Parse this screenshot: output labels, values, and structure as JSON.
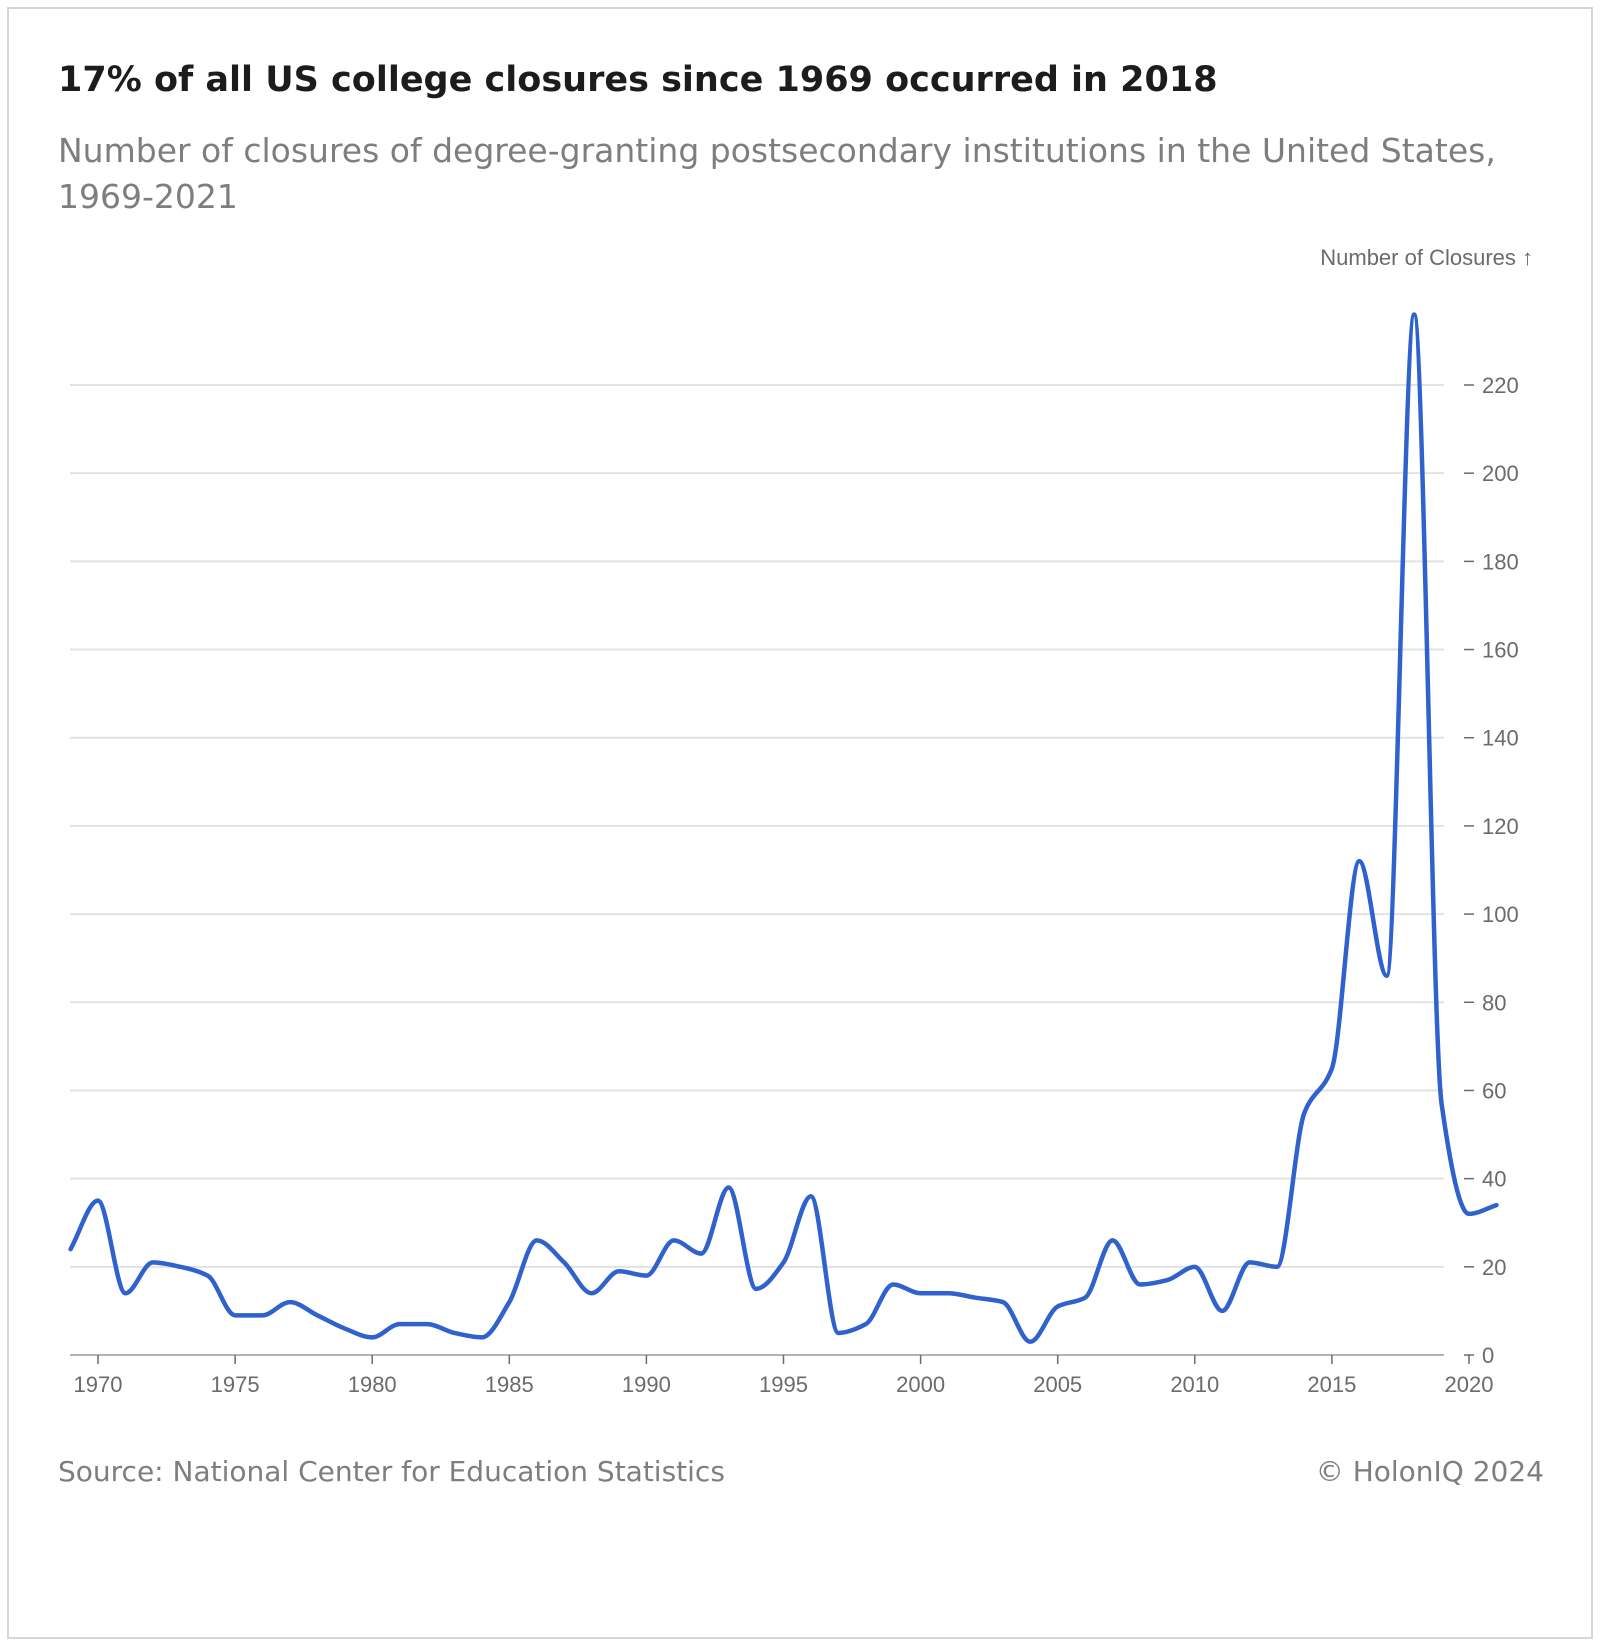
{
  "chart_data": {
    "type": "line",
    "title": "17% of all US college closures since 1969 occurred in 2018",
    "subtitle": "Number of closures of degree-granting postsecondary institutions in the United States, 1969-2021",
    "ylabel": "Number of Closures ↑",
    "xlabel": "",
    "xlim": [
      1969,
      2021
    ],
    "ylim": [
      0,
      220
    ],
    "x_ticks": [
      1970,
      1975,
      1980,
      1985,
      1990,
      1995,
      2000,
      2005,
      2010,
      2015,
      2020
    ],
    "y_ticks": [
      0,
      20,
      40,
      60,
      80,
      100,
      120,
      140,
      160,
      180,
      200,
      220
    ],
    "grid": true,
    "y_axis_position": "right",
    "line_color": "#2f62cc",
    "x": [
      1969,
      1970,
      1971,
      1972,
      1973,
      1974,
      1975,
      1976,
      1977,
      1978,
      1979,
      1980,
      1981,
      1982,
      1983,
      1984,
      1985,
      1986,
      1987,
      1988,
      1989,
      1990,
      1991,
      1992,
      1993,
      1994,
      1995,
      1996,
      1997,
      1998,
      1999,
      2000,
      2001,
      2002,
      2003,
      2004,
      2005,
      2006,
      2007,
      2008,
      2009,
      2010,
      2011,
      2012,
      2013,
      2014,
      2015,
      2016,
      2017,
      2018,
      2019,
      2020,
      2021
    ],
    "series": [
      {
        "values": [
          24,
          35,
          14,
          21,
          20,
          18,
          9,
          9,
          12,
          9,
          6,
          4,
          7,
          7,
          5,
          4,
          12,
          26,
          21,
          14,
          19,
          18,
          26,
          23,
          38,
          15,
          21,
          36,
          5,
          7,
          16,
          14,
          14,
          13,
          12,
          3,
          11,
          13,
          26,
          16,
          17,
          20,
          10,
          21,
          20,
          55,
          65,
          112,
          86,
          236,
          57,
          32,
          34
        ]
      }
    ]
  },
  "source": "Source: National Center for Education Statistics",
  "copyright": "© HolonIQ 2024"
}
